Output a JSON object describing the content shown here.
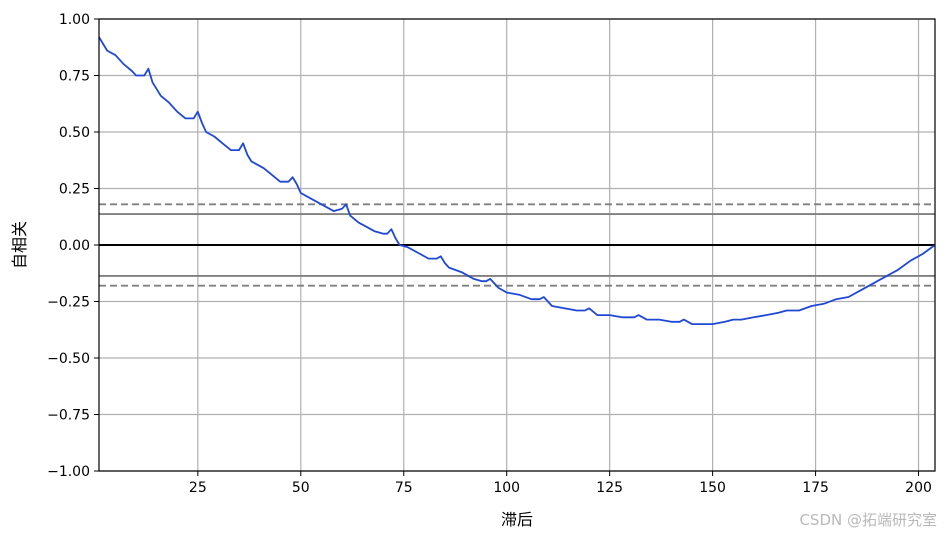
{
  "chart_data": {
    "type": "line",
    "xlabel": "滞后",
    "ylabel": "自相关",
    "xlim": [
      1,
      204
    ],
    "ylim": [
      -1.0,
      1.0
    ],
    "xticks": [
      25,
      50,
      75,
      100,
      125,
      150,
      175,
      200
    ],
    "xtick_labels": [
      "25",
      "50",
      "75",
      "100",
      "125",
      "150",
      "175",
      "200"
    ],
    "yticks": [
      -1.0,
      -0.75,
      -0.5,
      -0.25,
      0.0,
      0.25,
      0.5,
      0.75,
      1.0
    ],
    "ytick_labels": [
      "−1.00",
      "−0.75",
      "−0.50",
      "−0.25",
      "0.00",
      "0.25",
      "0.50",
      "0.75",
      "1.00"
    ],
    "grid": true,
    "reference_lines": [
      {
        "y": 0.0,
        "style": "solid",
        "color": "#000000"
      },
      {
        "y": 0.137,
        "style": "solid",
        "color": "#808080"
      },
      {
        "y": -0.137,
        "style": "solid",
        "color": "#808080"
      },
      {
        "y": 0.18,
        "style": "dashed",
        "color": "#808080"
      },
      {
        "y": -0.18,
        "style": "dashed",
        "color": "#808080"
      }
    ],
    "series": [
      {
        "color": "#1f48d6",
        "points": [
          [
            1,
            0.92
          ],
          [
            3,
            0.86
          ],
          [
            5,
            0.84
          ],
          [
            7,
            0.8
          ],
          [
            9,
            0.77
          ],
          [
            10,
            0.75
          ],
          [
            12,
            0.75
          ],
          [
            13,
            0.78
          ],
          [
            14,
            0.72
          ],
          [
            16,
            0.66
          ],
          [
            18,
            0.63
          ],
          [
            20,
            0.59
          ],
          [
            22,
            0.56
          ],
          [
            24,
            0.56
          ],
          [
            25,
            0.59
          ],
          [
            26,
            0.54
          ],
          [
            27,
            0.5
          ],
          [
            29,
            0.48
          ],
          [
            31,
            0.45
          ],
          [
            33,
            0.42
          ],
          [
            35,
            0.42
          ],
          [
            36,
            0.45
          ],
          [
            37,
            0.4
          ],
          [
            38,
            0.37
          ],
          [
            41,
            0.34
          ],
          [
            43,
            0.31
          ],
          [
            45,
            0.28
          ],
          [
            47,
            0.28
          ],
          [
            48,
            0.3
          ],
          [
            49,
            0.27
          ],
          [
            50,
            0.23
          ],
          [
            53,
            0.2
          ],
          [
            55,
            0.18
          ],
          [
            58,
            0.15
          ],
          [
            60,
            0.16
          ],
          [
            61,
            0.18
          ],
          [
            62,
            0.13
          ],
          [
            64,
            0.1
          ],
          [
            66,
            0.08
          ],
          [
            68,
            0.06
          ],
          [
            70,
            0.05
          ],
          [
            71,
            0.05
          ],
          [
            72,
            0.07
          ],
          [
            73,
            0.03
          ],
          [
            74,
            0.0
          ],
          [
            76,
            -0.01
          ],
          [
            79,
            -0.04
          ],
          [
            81,
            -0.06
          ],
          [
            83,
            -0.06
          ],
          [
            84,
            -0.05
          ],
          [
            85,
            -0.08
          ],
          [
            86,
            -0.1
          ],
          [
            89,
            -0.12
          ],
          [
            92,
            -0.15
          ],
          [
            94,
            -0.16
          ],
          [
            95,
            -0.16
          ],
          [
            96,
            -0.15
          ],
          [
            97,
            -0.17
          ],
          [
            98,
            -0.19
          ],
          [
            100,
            -0.21
          ],
          [
            103,
            -0.22
          ],
          [
            106,
            -0.24
          ],
          [
            108,
            -0.24
          ],
          [
            109,
            -0.23
          ],
          [
            111,
            -0.27
          ],
          [
            114,
            -0.28
          ],
          [
            117,
            -0.29
          ],
          [
            119,
            -0.29
          ],
          [
            120,
            -0.28
          ],
          [
            122,
            -0.31
          ],
          [
            125,
            -0.31
          ],
          [
            128,
            -0.32
          ],
          [
            131,
            -0.32
          ],
          [
            132,
            -0.31
          ],
          [
            134,
            -0.33
          ],
          [
            137,
            -0.33
          ],
          [
            140,
            -0.34
          ],
          [
            142,
            -0.34
          ],
          [
            143,
            -0.33
          ],
          [
            145,
            -0.35
          ],
          [
            147,
            -0.35
          ],
          [
            150,
            -0.35
          ],
          [
            153,
            -0.34
          ],
          [
            155,
            -0.33
          ],
          [
            157,
            -0.33
          ],
          [
            160,
            -0.32
          ],
          [
            163,
            -0.31
          ],
          [
            166,
            -0.3
          ],
          [
            168,
            -0.29
          ],
          [
            171,
            -0.29
          ],
          [
            174,
            -0.27
          ],
          [
            177,
            -0.26
          ],
          [
            180,
            -0.24
          ],
          [
            183,
            -0.23
          ],
          [
            186,
            -0.2
          ],
          [
            189,
            -0.17
          ],
          [
            192,
            -0.14
          ],
          [
            195,
            -0.11
          ],
          [
            198,
            -0.07
          ],
          [
            201,
            -0.04
          ],
          [
            204,
            0.0
          ]
        ]
      }
    ]
  },
  "watermark": "CSDN @拓端研究室"
}
